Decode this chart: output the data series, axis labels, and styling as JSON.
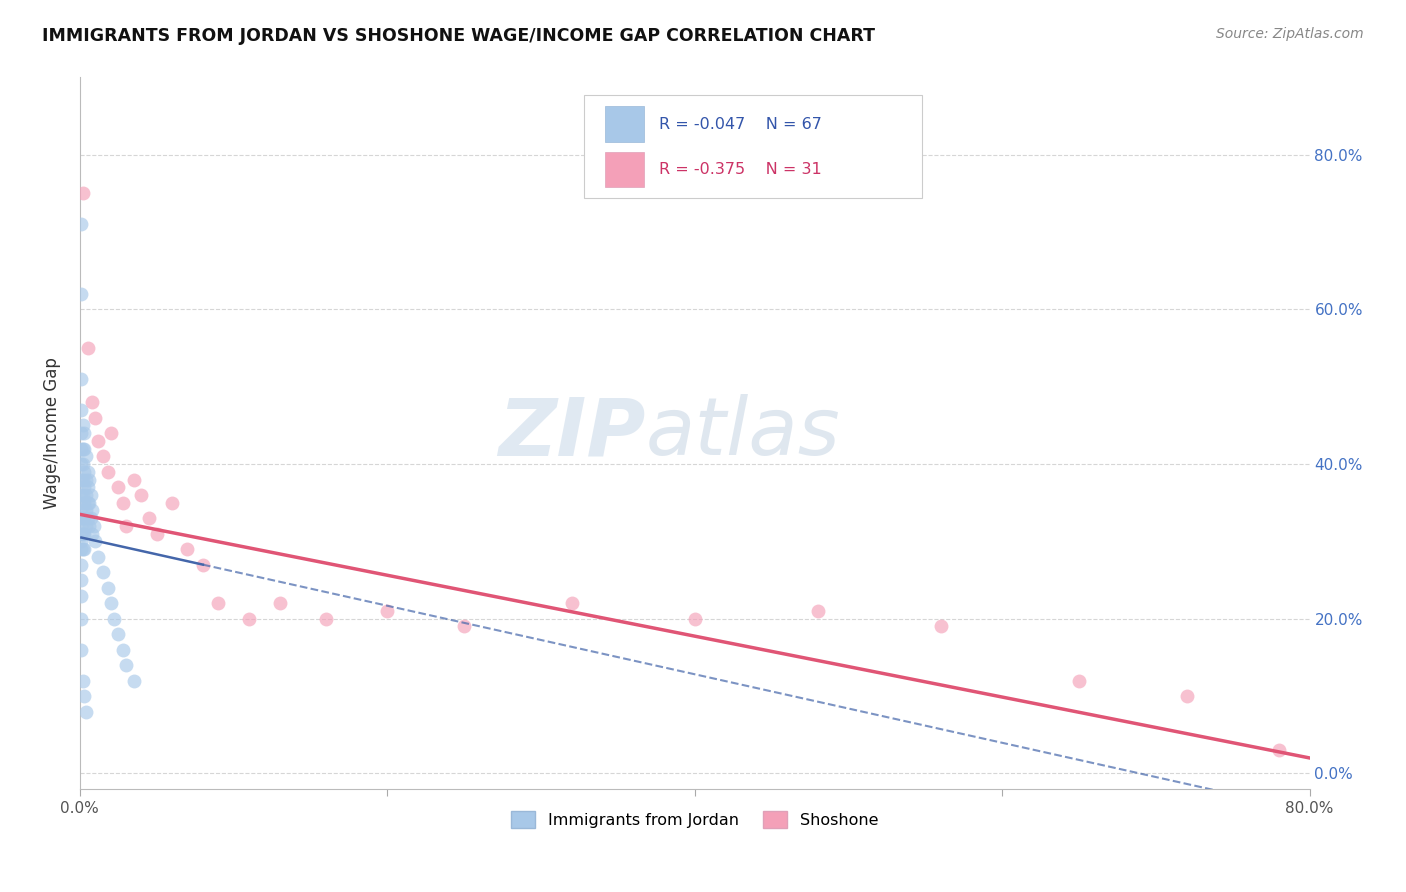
{
  "title": "IMMIGRANTS FROM JORDAN VS SHOSHONE WAGE/INCOME GAP CORRELATION CHART",
  "source": "Source: ZipAtlas.com",
  "ylabel": "Wage/Income Gap",
  "xlim": [
    0.0,
    0.8
  ],
  "ylim": [
    -0.02,
    0.9
  ],
  "blue_color": "#a8c8e8",
  "pink_color": "#f4a0b8",
  "line_blue_color": "#4466aa",
  "line_pink_color": "#e05575",
  "watermark_zip": "ZIP",
  "watermark_atlas": "atlas",
  "jordan_x": [
    0.001,
    0.001,
    0.001,
    0.001,
    0.001,
    0.001,
    0.001,
    0.001,
    0.001,
    0.001,
    0.001,
    0.001,
    0.001,
    0.001,
    0.001,
    0.001,
    0.001,
    0.001,
    0.001,
    0.001,
    0.002,
    0.002,
    0.002,
    0.002,
    0.002,
    0.002,
    0.002,
    0.002,
    0.002,
    0.002,
    0.003,
    0.003,
    0.003,
    0.003,
    0.003,
    0.003,
    0.003,
    0.003,
    0.003,
    0.004,
    0.004,
    0.004,
    0.004,
    0.004,
    0.004,
    0.005,
    0.005,
    0.005,
    0.005,
    0.006,
    0.006,
    0.006,
    0.007,
    0.007,
    0.008,
    0.008,
    0.009,
    0.01,
    0.012,
    0.015,
    0.018,
    0.02,
    0.022,
    0.025,
    0.028,
    0.03,
    0.035
  ],
  "jordan_y": [
    0.71,
    0.62,
    0.51,
    0.47,
    0.44,
    0.42,
    0.4,
    0.38,
    0.36,
    0.34,
    0.33,
    0.32,
    0.31,
    0.3,
    0.29,
    0.27,
    0.25,
    0.23,
    0.2,
    0.16,
    0.45,
    0.42,
    0.4,
    0.38,
    0.36,
    0.35,
    0.33,
    0.31,
    0.29,
    0.12,
    0.44,
    0.42,
    0.39,
    0.37,
    0.35,
    0.33,
    0.31,
    0.29,
    0.1,
    0.41,
    0.38,
    0.36,
    0.34,
    0.32,
    0.08,
    0.39,
    0.37,
    0.35,
    0.33,
    0.38,
    0.35,
    0.32,
    0.36,
    0.33,
    0.34,
    0.31,
    0.32,
    0.3,
    0.28,
    0.26,
    0.24,
    0.22,
    0.2,
    0.18,
    0.16,
    0.14,
    0.12
  ],
  "shoshone_x": [
    0.002,
    0.005,
    0.008,
    0.01,
    0.012,
    0.015,
    0.018,
    0.02,
    0.025,
    0.028,
    0.03,
    0.035,
    0.04,
    0.045,
    0.05,
    0.06,
    0.07,
    0.08,
    0.09,
    0.11,
    0.13,
    0.16,
    0.2,
    0.25,
    0.32,
    0.4,
    0.48,
    0.56,
    0.65,
    0.72,
    0.78
  ],
  "shoshone_y": [
    0.75,
    0.55,
    0.48,
    0.46,
    0.43,
    0.41,
    0.39,
    0.44,
    0.37,
    0.35,
    0.32,
    0.38,
    0.36,
    0.33,
    0.31,
    0.35,
    0.29,
    0.27,
    0.22,
    0.2,
    0.22,
    0.2,
    0.21,
    0.19,
    0.22,
    0.2,
    0.21,
    0.19,
    0.12,
    0.1,
    0.03
  ],
  "jordan_line_x": [
    0.001,
    0.08
  ],
  "jordan_line_y": [
    0.305,
    0.27
  ],
  "shoshone_line_x": [
    0.0,
    0.8
  ],
  "shoshone_line_y": [
    0.335,
    0.02
  ]
}
